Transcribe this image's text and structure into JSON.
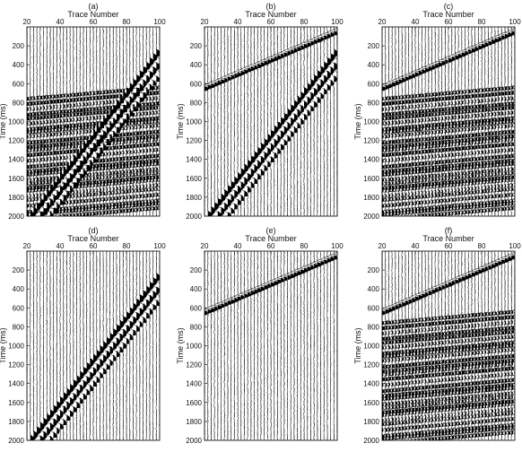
{
  "figure": {
    "panels": [
      {
        "label": "(a)",
        "xlabel": "Trace Number",
        "ylabel": "Time (ms)",
        "content": [
          "events",
          "ground-roll",
          "noise"
        ]
      },
      {
        "label": "(b)",
        "xlabel": "Trace Number",
        "ylabel": "Time (ms)",
        "content": [
          "first-break",
          "ground-roll",
          "noise"
        ]
      },
      {
        "label": "(c)",
        "xlabel": "Trace Number",
        "ylabel": "Time (ms)",
        "content": [
          "first-break",
          "events",
          "noise"
        ]
      },
      {
        "label": "(d)",
        "xlabel": "Trace Number",
        "ylabel": "Time (ms)",
        "content": [
          "ground-roll",
          "noise"
        ]
      },
      {
        "label": "(e)",
        "xlabel": "Trace Number",
        "ylabel": "Time (ms)",
        "content": [
          "first-break",
          "noise"
        ]
      },
      {
        "label": "(f)",
        "xlabel": "Trace Number",
        "ylabel": "Time (ms)",
        "content": [
          "first-break",
          "events",
          "noise"
        ]
      }
    ]
  },
  "chart_data": {
    "type": "seismic-wiggle",
    "x": {
      "label": "Trace Number",
      "range": [
        20,
        100
      ],
      "ticks": [
        "20",
        "40",
        "60",
        "80",
        "100"
      ]
    },
    "y": {
      "label": "Time (ms)",
      "range": [
        0,
        2000
      ],
      "reversed": true,
      "ticks": [
        "200",
        "400",
        "600",
        "800",
        "1000",
        "1200",
        "1400",
        "1600",
        "1800",
        "2000"
      ]
    },
    "first_break": {
      "t_at_trace_20": 640,
      "t_at_trace_100": 40
    },
    "ground_roll": {
      "t_at_trace_20": 2000,
      "t_at_trace_100": 200
    },
    "event_band_ms": [
      700,
      2000
    ],
    "color": "#000000",
    "background": "#ffffff"
  }
}
